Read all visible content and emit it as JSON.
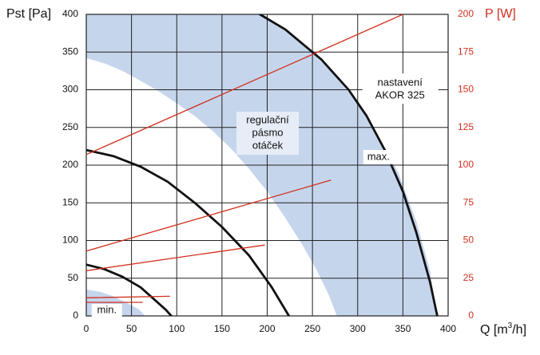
{
  "colors": {
    "band": "#c5d5ec",
    "grid": "#222222",
    "fan_curve": "#111111",
    "power_line": "#d2301e",
    "left_axis_text": "#111111",
    "right_axis_text": "#d2301e"
  },
  "chart_data": {
    "type": "line",
    "title": "",
    "xlabel": "Q [m³/h]",
    "ylabel": "Pst [Pa]",
    "y2label": "P [W]",
    "xlim": [
      0,
      400
    ],
    "ylim": [
      0,
      400
    ],
    "y2lim": [
      0,
      200
    ],
    "grid": true,
    "x_ticks": [
      "0",
      "50",
      "100",
      "150",
      "200",
      "250",
      "300",
      "350",
      "400"
    ],
    "y_ticks": [
      "0",
      "50",
      "100",
      "150",
      "200",
      "250",
      "300",
      "350",
      "400"
    ],
    "y2_ticks": [
      "0",
      "25",
      "50",
      "75",
      "100",
      "125",
      "150",
      "175",
      "200"
    ],
    "band": {
      "label_lines": [
        "regulační",
        "pásmo",
        "otáček"
      ],
      "upper_edge": [
        [
          195,
          400
        ],
        [
          220,
          380
        ],
        [
          245,
          355
        ],
        [
          270,
          325
        ],
        [
          295,
          290
        ],
        [
          320,
          245
        ],
        [
          345,
          190
        ],
        [
          365,
          125
        ],
        [
          380,
          60
        ],
        [
          388,
          0
        ]
      ],
      "lower_edge": [
        [
          0,
          342
        ],
        [
          20,
          335
        ],
        [
          40,
          325
        ],
        [
          60,
          312
        ],
        [
          80,
          298
        ],
        [
          100,
          282
        ],
        [
          120,
          265
        ],
        [
          140,
          245
        ],
        [
          160,
          222
        ],
        [
          180,
          195
        ],
        [
          200,
          165
        ],
        [
          220,
          130
        ],
        [
          240,
          92
        ],
        [
          255,
          60
        ],
        [
          268,
          28
        ],
        [
          277,
          0
        ]
      ],
      "lower_inner": [
        [
          0,
          35
        ],
        [
          15,
          32
        ],
        [
          30,
          26
        ],
        [
          45,
          17
        ],
        [
          58,
          9
        ],
        [
          65,
          0
        ]
      ]
    },
    "series": [
      {
        "name": "max.",
        "axis": "left",
        "points": [
          [
            192,
            400
          ],
          [
            220,
            380
          ],
          [
            260,
            340
          ],
          [
            290,
            300
          ],
          [
            310,
            265
          ],
          [
            330,
            220
          ],
          [
            350,
            165
          ],
          [
            365,
            110
          ],
          [
            380,
            45
          ],
          [
            388,
            0
          ]
        ]
      },
      {
        "axis": "left",
        "points": [
          [
            0,
            220
          ],
          [
            30,
            212
          ],
          [
            60,
            198
          ],
          [
            90,
            178
          ],
          [
            120,
            150
          ],
          [
            150,
            118
          ],
          [
            180,
            80
          ],
          [
            205,
            38
          ],
          [
            224,
            0
          ]
        ]
      },
      {
        "name": "min.",
        "axis": "left",
        "points": [
          [
            0,
            68
          ],
          [
            20,
            62
          ],
          [
            40,
            52
          ],
          [
            60,
            38
          ],
          [
            75,
            22
          ],
          [
            88,
            8
          ],
          [
            94,
            0
          ]
        ]
      },
      {
        "axis": "right",
        "points": [
          [
            0,
            107
          ],
          [
            350,
            200
          ]
        ]
      },
      {
        "axis": "right",
        "points": [
          [
            0,
            43
          ],
          [
            270,
            90
          ]
        ]
      },
      {
        "axis": "right",
        "points": [
          [
            0,
            30
          ],
          [
            197,
            47
          ]
        ]
      },
      {
        "axis": "right",
        "points": [
          [
            0,
            12
          ],
          [
            92,
            13
          ]
        ]
      },
      {
        "axis": "right",
        "points": [
          [
            0,
            9
          ],
          [
            62,
            9
          ]
        ]
      }
    ],
    "annotations": [
      {
        "text_lines": [
          "nastavení",
          "AKOR 325"
        ],
        "x": 307,
        "y": 300
      },
      {
        "text_lines": [
          "max."
        ],
        "x": 308,
        "y": 210
      },
      {
        "text_lines": [
          "min."
        ],
        "x": 6,
        "y": 7
      }
    ]
  }
}
